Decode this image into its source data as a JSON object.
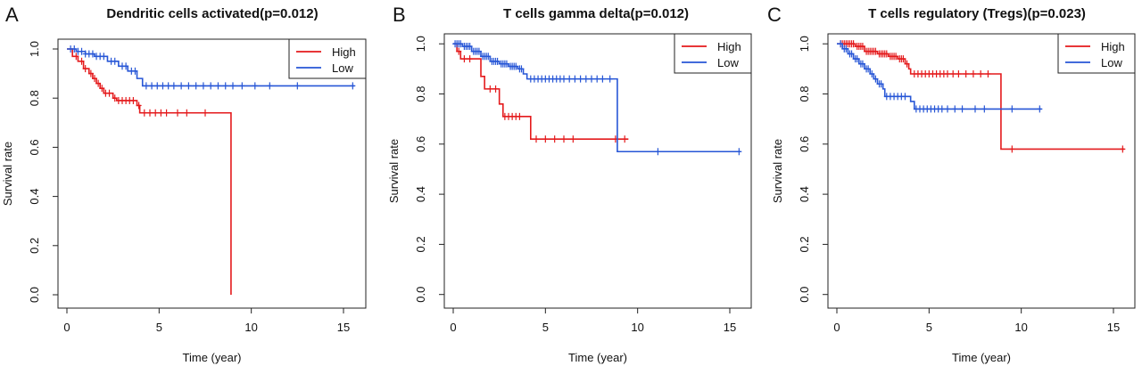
{
  "chart_data": [
    {
      "type": "line",
      "panel": "A",
      "title": "Dendritic cells activated(p=0.012)",
      "xlabel": "Time (year)",
      "ylabel": "Survival rate",
      "xlim": [
        0,
        16
      ],
      "ylim": [
        0,
        1
      ],
      "x_ticks": [
        0,
        5,
        10,
        15
      ],
      "y_ticks": [
        0.0,
        0.2,
        0.4,
        0.6,
        0.8,
        1.0
      ],
      "legend_position": "top-right",
      "grid": false,
      "series": [
        {
          "name": "High",
          "color": "#e41a1c",
          "steps": [
            [
              0,
              1.0
            ],
            [
              0.3,
              0.97
            ],
            [
              0.6,
              0.95
            ],
            [
              0.9,
              0.92
            ],
            [
              1.2,
              0.9
            ],
            [
              1.4,
              0.88
            ],
            [
              1.6,
              0.86
            ],
            [
              1.8,
              0.84
            ],
            [
              2.0,
              0.82
            ],
            [
              2.5,
              0.8
            ],
            [
              2.7,
              0.79
            ],
            [
              3.8,
              0.77
            ],
            [
              3.95,
              0.74
            ],
            [
              8.9,
              0.74
            ],
            [
              8.9,
              0.0
            ]
          ],
          "censor": [
            0.5,
            0.8,
            1.0,
            1.3,
            1.5,
            1.7,
            1.9,
            2.1,
            2.3,
            2.6,
            2.8,
            3.0,
            3.2,
            3.4,
            3.6,
            3.9,
            4.2,
            4.5,
            4.8,
            5.1,
            5.4,
            6.0,
            6.5,
            7.5
          ]
        },
        {
          "name": "Low",
          "color": "#2756d6",
          "steps": [
            [
              0,
              1.0
            ],
            [
              0.5,
              0.99
            ],
            [
              1.0,
              0.98
            ],
            [
              1.5,
              0.97
            ],
            [
              2.2,
              0.95
            ],
            [
              2.8,
              0.93
            ],
            [
              3.3,
              0.91
            ],
            [
              3.8,
              0.88
            ],
            [
              4.1,
              0.85
            ],
            [
              15.6,
              0.85
            ]
          ],
          "censor": [
            0.2,
            0.4,
            0.6,
            0.8,
            1.0,
            1.2,
            1.4,
            1.6,
            1.8,
            2.0,
            2.4,
            2.6,
            3.0,
            3.2,
            3.5,
            3.7,
            4.3,
            4.6,
            4.9,
            5.2,
            5.5,
            5.8,
            6.2,
            6.6,
            7.0,
            7.4,
            7.8,
            8.2,
            8.6,
            9.0,
            9.5,
            10.2,
            11.0,
            12.5,
            15.5
          ]
        }
      ]
    },
    {
      "type": "line",
      "panel": "B",
      "title": "T cells gamma delta(p=0.012)",
      "xlabel": "Time (year)",
      "ylabel": "Survival rate",
      "xlim": [
        0,
        16
      ],
      "ylim": [
        0,
        1
      ],
      "x_ticks": [
        0,
        5,
        10,
        15
      ],
      "y_ticks": [
        0.0,
        0.2,
        0.4,
        0.6,
        0.8,
        1.0
      ],
      "legend_position": "top-right",
      "grid": false,
      "series": [
        {
          "name": "High",
          "color": "#e41a1c",
          "steps": [
            [
              0,
              1.0
            ],
            [
              0.2,
              0.97
            ],
            [
              0.4,
              0.94
            ],
            [
              1.5,
              0.87
            ],
            [
              1.7,
              0.82
            ],
            [
              2.5,
              0.76
            ],
            [
              2.7,
              0.71
            ],
            [
              4.2,
              0.62
            ],
            [
              9.5,
              0.62
            ]
          ],
          "censor": [
            0.3,
            0.6,
            0.9,
            2.0,
            2.3,
            2.8,
            3.0,
            3.2,
            3.4,
            3.6,
            4.5,
            5.0,
            5.5,
            6.0,
            6.5,
            8.8,
            9.3
          ]
        },
        {
          "name": "Low",
          "color": "#2756d6",
          "steps": [
            [
              0,
              1.0
            ],
            [
              0.5,
              0.99
            ],
            [
              1.0,
              0.97
            ],
            [
              1.5,
              0.95
            ],
            [
              2.0,
              0.93
            ],
            [
              2.5,
              0.92
            ],
            [
              3.0,
              0.91
            ],
            [
              3.5,
              0.9
            ],
            [
              3.8,
              0.88
            ],
            [
              4.0,
              0.86
            ],
            [
              8.9,
              0.86
            ],
            [
              8.9,
              0.57
            ],
            [
              15.6,
              0.57
            ]
          ],
          "censor": [
            0.1,
            0.2,
            0.3,
            0.4,
            0.6,
            0.7,
            0.8,
            0.9,
            1.1,
            1.2,
            1.3,
            1.4,
            1.6,
            1.7,
            1.8,
            1.9,
            2.1,
            2.2,
            2.3,
            2.4,
            2.6,
            2.7,
            2.8,
            2.9,
            3.1,
            3.2,
            3.3,
            3.4,
            3.6,
            3.7,
            4.2,
            4.4,
            4.6,
            4.8,
            5.0,
            5.2,
            5.4,
            5.6,
            5.8,
            6.0,
            6.3,
            6.6,
            6.9,
            7.2,
            7.5,
            7.8,
            8.1,
            8.5,
            11.1,
            15.5
          ]
        }
      ]
    },
    {
      "type": "line",
      "panel": "C",
      "title": "T cells regulatory (Tregs)(p=0.023)",
      "xlabel": "Time (year)",
      "ylabel": "Survival rate",
      "xlim": [
        0,
        16
      ],
      "ylim": [
        0,
        1
      ],
      "x_ticks": [
        0,
        5,
        10,
        15
      ],
      "y_ticks": [
        0.0,
        0.2,
        0.4,
        0.6,
        0.8,
        1.0
      ],
      "legend_position": "top-right",
      "grid": false,
      "series": [
        {
          "name": "High",
          "color": "#e41a1c",
          "steps": [
            [
              0,
              1.0
            ],
            [
              1.0,
              0.99
            ],
            [
              1.5,
              0.97
            ],
            [
              2.2,
              0.96
            ],
            [
              2.8,
              0.95
            ],
            [
              3.3,
              0.94
            ],
            [
              3.7,
              0.92
            ],
            [
              3.9,
              0.9
            ],
            [
              4.0,
              0.88
            ],
            [
              8.9,
              0.88
            ],
            [
              8.9,
              0.58
            ],
            [
              15.6,
              0.58
            ]
          ],
          "censor": [
            0.2,
            0.3,
            0.4,
            0.5,
            0.6,
            0.7,
            0.8,
            0.9,
            1.1,
            1.2,
            1.3,
            1.4,
            1.6,
            1.7,
            1.8,
            1.9,
            2.0,
            2.1,
            2.3,
            2.4,
            2.5,
            2.6,
            2.7,
            2.9,
            3.0,
            3.1,
            3.2,
            3.4,
            3.5,
            3.6,
            3.8,
            4.2,
            4.4,
            4.6,
            4.8,
            5.0,
            5.2,
            5.4,
            5.6,
            5.8,
            6.0,
            6.3,
            6.6,
            7.0,
            7.4,
            7.8,
            8.2,
            9.5,
            15.5
          ]
        },
        {
          "name": "Low",
          "color": "#2756d6",
          "steps": [
            [
              0,
              1.0
            ],
            [
              0.3,
              0.98
            ],
            [
              0.6,
              0.96
            ],
            [
              0.9,
              0.94
            ],
            [
              1.2,
              0.92
            ],
            [
              1.5,
              0.9
            ],
            [
              1.8,
              0.88
            ],
            [
              2.0,
              0.86
            ],
            [
              2.2,
              0.84
            ],
            [
              2.5,
              0.82
            ],
            [
              2.6,
              0.79
            ],
            [
              3.8,
              0.79
            ],
            [
              4.0,
              0.77
            ],
            [
              4.2,
              0.74
            ],
            [
              11.1,
              0.74
            ]
          ],
          "censor": [
            0.2,
            0.4,
            0.5,
            0.7,
            0.8,
            1.0,
            1.1,
            1.3,
            1.4,
            1.6,
            1.7,
            1.9,
            2.1,
            2.3,
            2.4,
            2.7,
            2.9,
            3.1,
            3.3,
            3.5,
            3.7,
            4.3,
            4.5,
            4.7,
            4.9,
            5.1,
            5.3,
            5.5,
            5.7,
            6.0,
            6.4,
            6.8,
            7.5,
            8.0,
            9.5,
            11.0
          ]
        }
      ]
    }
  ]
}
